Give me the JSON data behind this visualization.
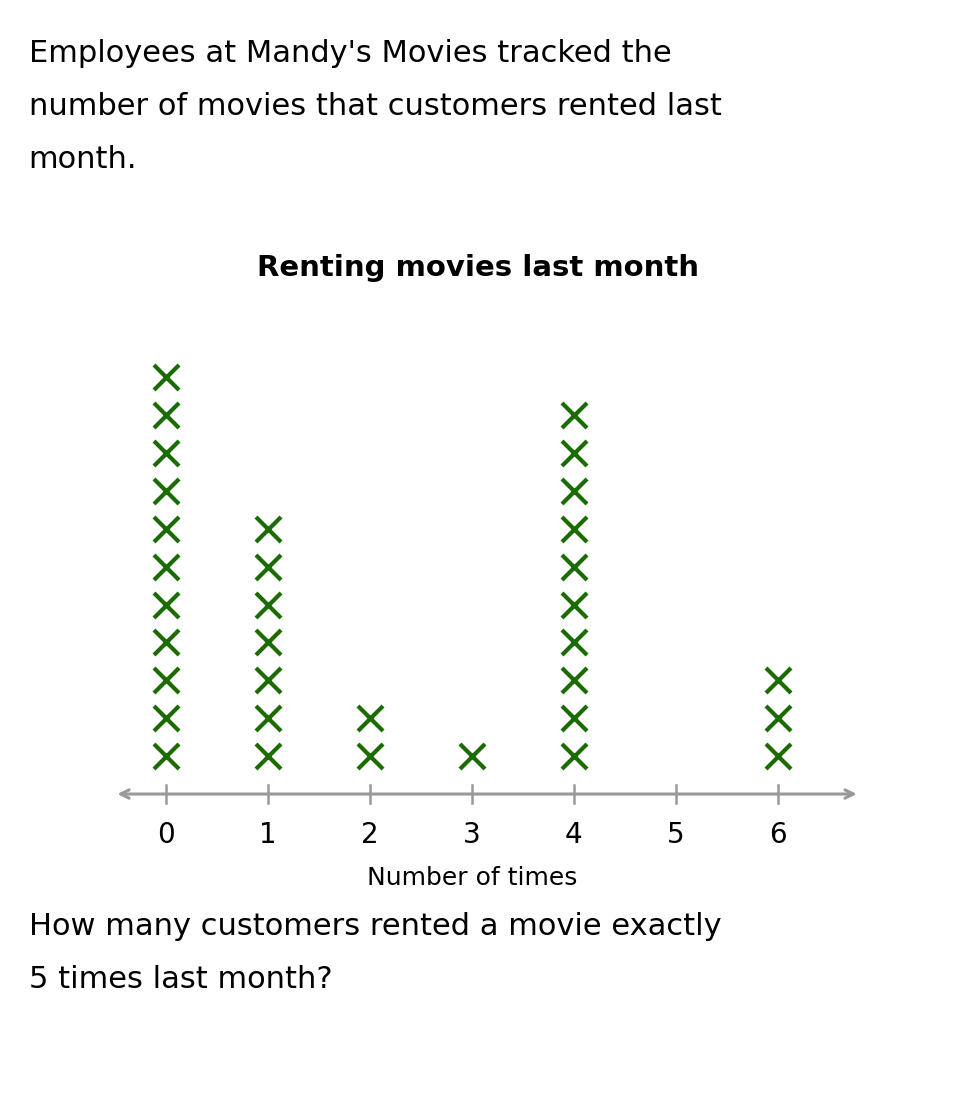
{
  "title": "Renting movies last month",
  "xlabel": "Number of times",
  "dot_plot_data": {
    "0": 11,
    "1": 7,
    "2": 2,
    "3": 1,
    "4": 10,
    "5": 0,
    "6": 3
  },
  "x_min": -0.5,
  "x_max": 6.8,
  "marker_color": "#1a6b00",
  "marker_size": 18,
  "marker_linewidth": 3.0,
  "axis_color": "#999999",
  "background_color": "#ffffff",
  "top_text_line1": "Employees at Mandy's Movies tracked the",
  "top_text_line2": "number of movies that customers rented last",
  "top_text_line3": "month.",
  "bottom_text_line1": "How many customers rented a movie exactly",
  "bottom_text_line2": "5 times last month?",
  "title_fontsize": 21,
  "label_fontsize": 18,
  "tick_fontsize": 20,
  "text_fontsize": 22,
  "question_fontsize": 22
}
